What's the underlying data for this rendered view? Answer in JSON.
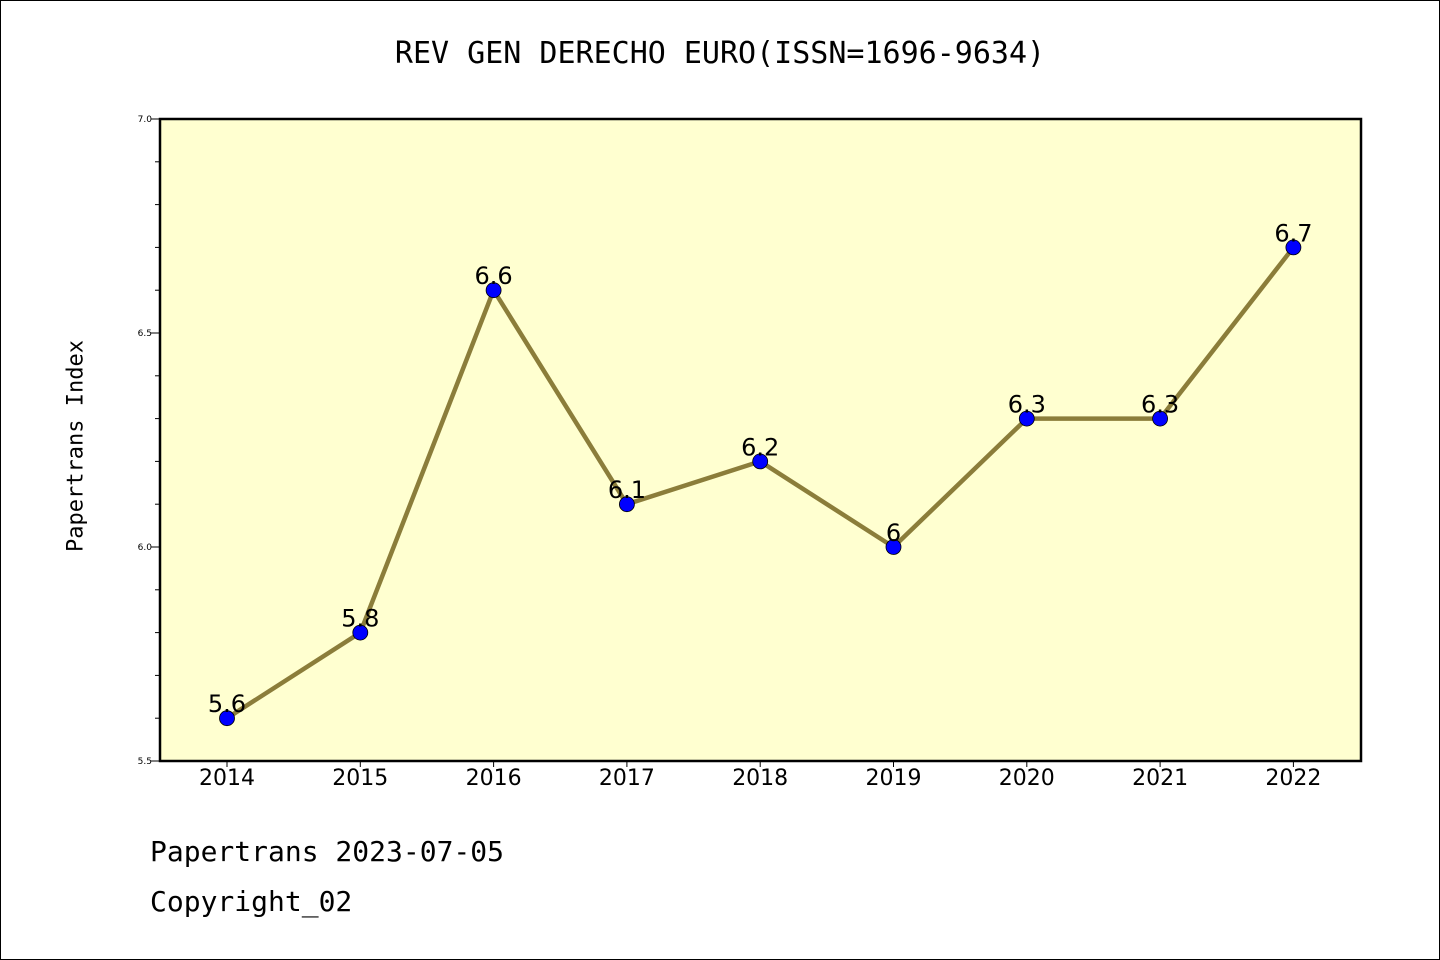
{
  "chart_data": {
    "type": "line",
    "title": "REV GEN DERECHO EURO(ISSN=1696-9634)",
    "xlabel": "",
    "ylabel": "Papertrans Index",
    "categories": [
      "2014",
      "2015",
      "2016",
      "2017",
      "2018",
      "2019",
      "2020",
      "2021",
      "2022"
    ],
    "series": [
      {
        "values": [
          5.6,
          5.8,
          6.6,
          6.1,
          6.2,
          6.0,
          6.3,
          6.3,
          6.7
        ],
        "labels": [
          "5.6",
          "5.8",
          "6.6",
          "6.1",
          "6.2",
          "6",
          "6.3",
          "6.3",
          "6.7"
        ],
        "line_color": "#8b7d3a",
        "marker_color": "#0000ff"
      }
    ],
    "ylim": [
      5.5,
      7.0
    ],
    "yticks": [
      {
        "value": 5.5,
        "label": "5.5"
      },
      {
        "value": 6.0,
        "label": "6.0"
      },
      {
        "value": 6.5,
        "label": "6.5"
      },
      {
        "value": 7.0,
        "label": "7.0"
      }
    ],
    "y_minor_step": 0.1,
    "grid": false,
    "plot_background": "#ffffd0"
  },
  "footer": {
    "date_line": "Papertrans 2023-07-05",
    "copyright": "Copyright_02"
  }
}
